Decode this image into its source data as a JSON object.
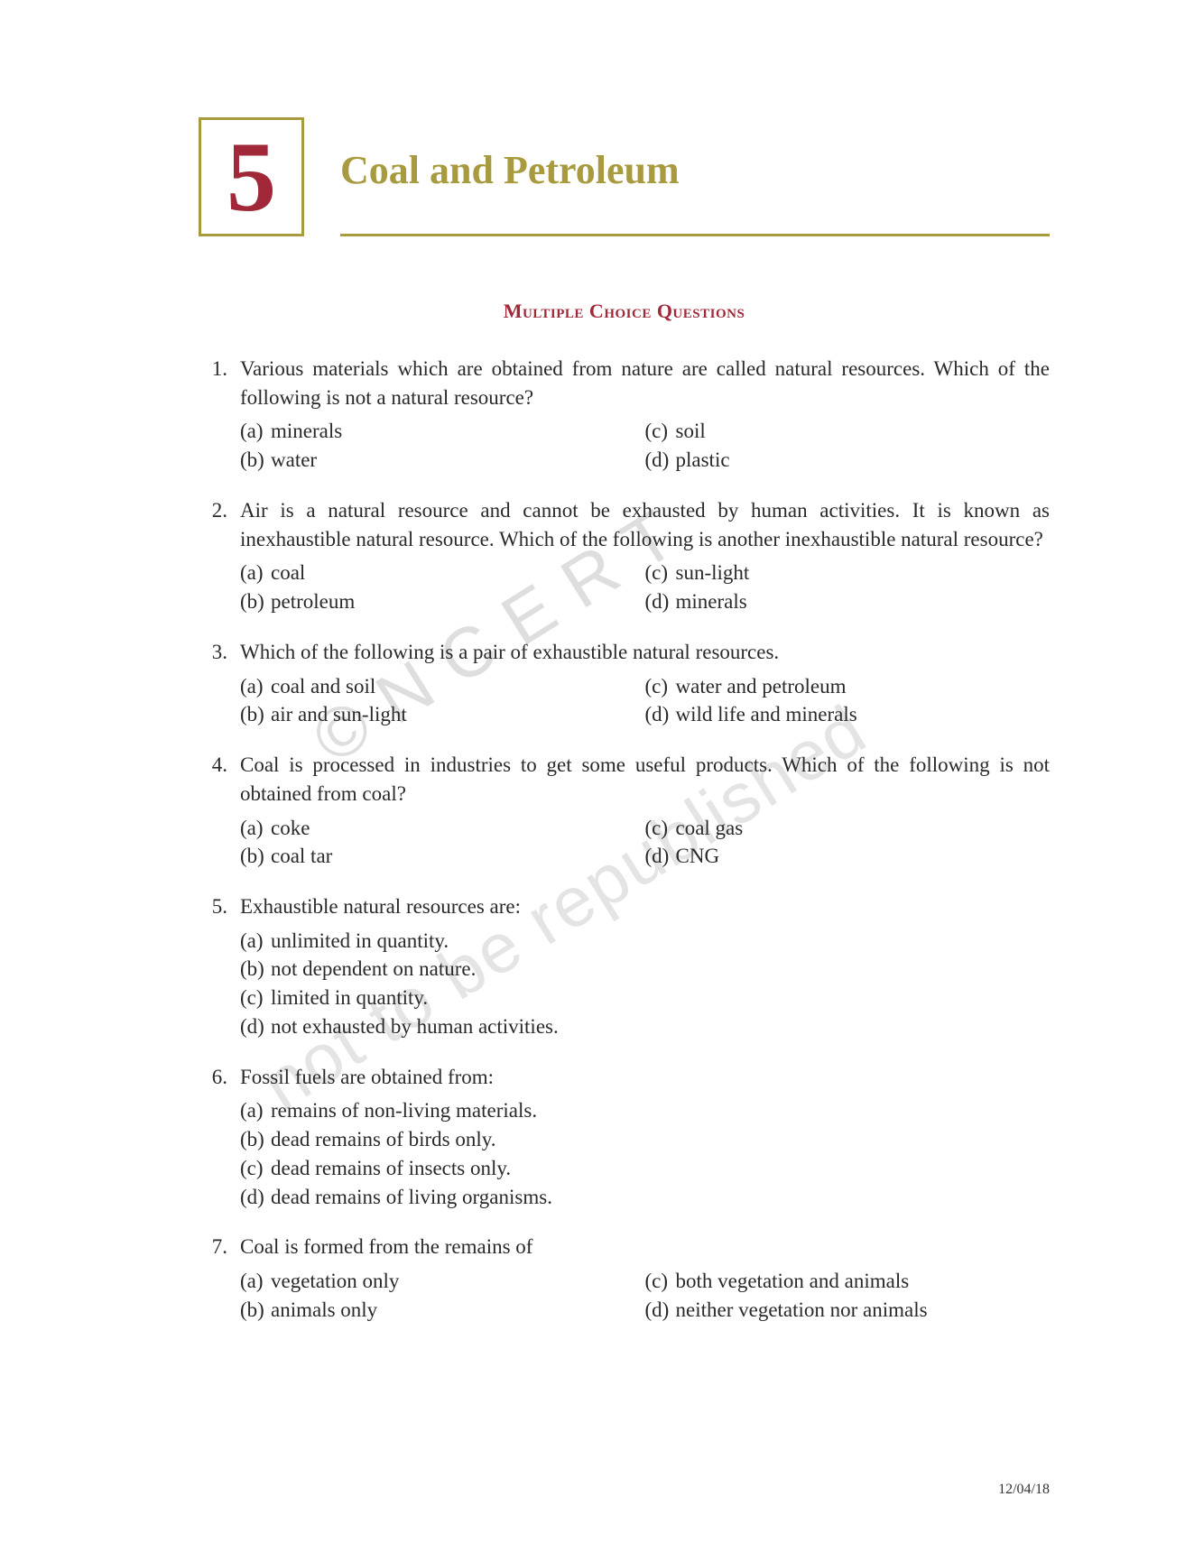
{
  "chapter": {
    "number": "5",
    "title": "Coal and Petroleum"
  },
  "section_heading": "Multiple Choice Questions",
  "watermark1": "© N C E R T",
  "watermark2": "not to be republished",
  "footer_date": "12/04/18",
  "questions": [
    {
      "num": "1.",
      "text": "Various materials which are obtained from nature are called natural resources. Which of the following is not a natural resource?",
      "layout": "2col",
      "options_left": [
        {
          "label": "(a)",
          "text": "minerals"
        },
        {
          "label": "(b)",
          "text": "water"
        }
      ],
      "options_right": [
        {
          "label": "(c)",
          "text": "soil"
        },
        {
          "label": "(d)",
          "text": "plastic"
        }
      ]
    },
    {
      "num": "2.",
      "text": "Air is a natural resource and cannot be exhausted by human activities. It is known as inexhaustible natural resource. Which of the following is another inexhaustible natural resource?",
      "layout": "2col",
      "options_left": [
        {
          "label": "(a)",
          "text": "coal"
        },
        {
          "label": "(b)",
          "text": "petroleum"
        }
      ],
      "options_right": [
        {
          "label": "(c)",
          "text": "sun-light"
        },
        {
          "label": "(d)",
          "text": "minerals"
        }
      ]
    },
    {
      "num": "3.",
      "text": "Which of the following is a pair of exhaustible natural resources.",
      "layout": "2col",
      "options_left": [
        {
          "label": "(a)",
          "text": "coal and soil"
        },
        {
          "label": "(b)",
          "text": "air and sun-light"
        }
      ],
      "options_right": [
        {
          "label": "(c)",
          "text": "water and petroleum"
        },
        {
          "label": "(d)",
          "text": "wild life and minerals"
        }
      ]
    },
    {
      "num": "4.",
      "text": "Coal is processed in industries to get some useful products. Which of the following is not obtained from coal?",
      "layout": "2col",
      "options_left": [
        {
          "label": "(a)",
          "text": "coke"
        },
        {
          "label": "(b)",
          "text": "coal tar"
        }
      ],
      "options_right": [
        {
          "label": "(c)",
          "text": "coal gas"
        },
        {
          "label": "(d)",
          "text": "CNG"
        }
      ]
    },
    {
      "num": "5.",
      "text": "Exhaustible natural resources are:",
      "layout": "1col",
      "options": [
        {
          "label": "(a)",
          "text": "unlimited in quantity."
        },
        {
          "label": "(b)",
          "text": "not dependent on nature."
        },
        {
          "label": "(c)",
          "text": "limited in quantity."
        },
        {
          "label": "(d)",
          "text": "not exhausted by human activities."
        }
      ]
    },
    {
      "num": "6.",
      "text": "Fossil fuels are obtained from:",
      "layout": "1col",
      "options": [
        {
          "label": "(a)",
          "text": "remains of non-living materials."
        },
        {
          "label": "(b)",
          "text": "dead remains of birds only."
        },
        {
          "label": "(c)",
          "text": "dead remains of insects only."
        },
        {
          "label": "(d)",
          "text": "dead remains of living organisms."
        }
      ]
    },
    {
      "num": "7.",
      "text": "Coal is formed from the remains of",
      "layout": "2col",
      "options_left": [
        {
          "label": "(a)",
          "text": "vegetation only"
        },
        {
          "label": "(b)",
          "text": "animals only"
        }
      ],
      "options_right": [
        {
          "label": "(c)",
          "text": "both vegetation and animals"
        },
        {
          "label": "(d)",
          "text": "neither vegetation nor animals"
        }
      ]
    }
  ]
}
